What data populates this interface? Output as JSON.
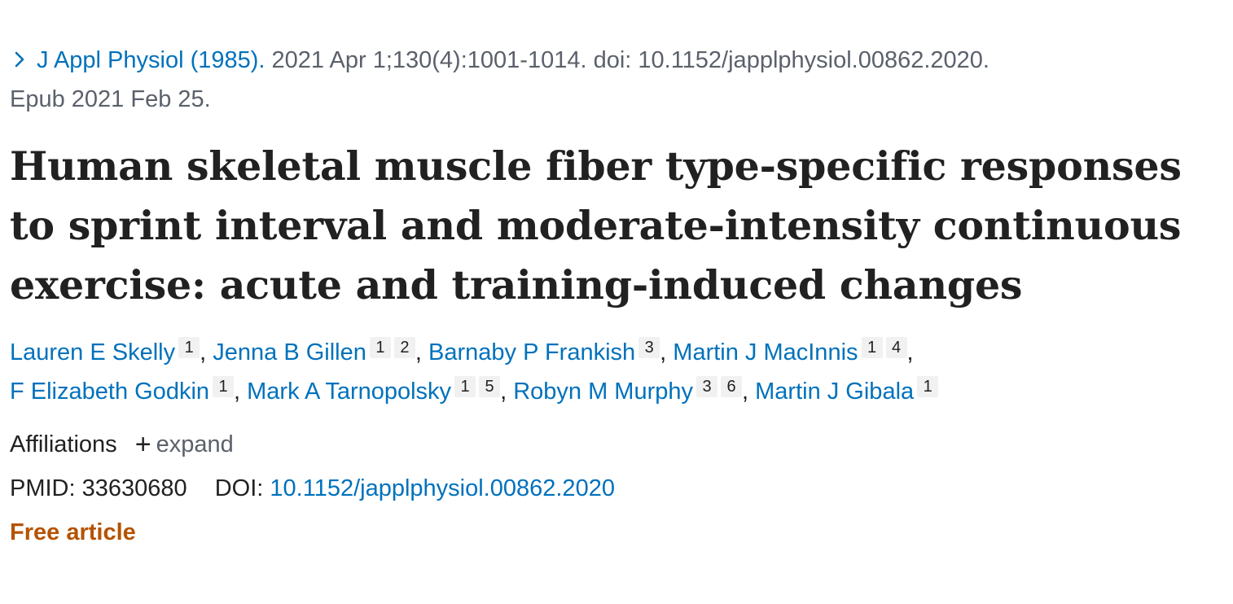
{
  "citation": {
    "journal": "J Appl Physiol (1985).",
    "details": "2021 Apr 1;130(4):1001-1014. doi: 10.1152/japplphysiol.00862.2020.",
    "epub": "Epub 2021 Feb 25."
  },
  "article": {
    "title_lines": [
      "Human skeletal muscle fiber type-specific responses",
      "to sprint interval and moderate-intensity continuous",
      "exercise: acute and training-induced changes"
    ]
  },
  "authors": [
    {
      "name": "Lauren E Skelly",
      "affs": [
        "1"
      ]
    },
    {
      "name": "Jenna B Gillen",
      "affs": [
        "1",
        "2"
      ]
    },
    {
      "name": "Barnaby P Frankish",
      "affs": [
        "3"
      ]
    },
    {
      "name": "Martin J MacInnis",
      "affs": [
        "1",
        "4"
      ]
    },
    {
      "name": "F Elizabeth Godkin",
      "affs": [
        "1"
      ]
    },
    {
      "name": "Mark A Tarnopolsky",
      "affs": [
        "1",
        "5"
      ]
    },
    {
      "name": "Robyn M Murphy",
      "affs": [
        "3",
        "6"
      ]
    },
    {
      "name": "Martin J Gibala",
      "affs": [
        "1"
      ]
    }
  ],
  "affiliations": {
    "label": "Affiliations",
    "expand_label": "expand"
  },
  "identifiers": {
    "pmid_label": "PMID:",
    "pmid": "33630680",
    "doi_label": "DOI:",
    "doi": "10.1152/japplphysiol.00862.2020"
  },
  "free_article": "Free article",
  "colors": {
    "link": "#0071bc",
    "free_article": "#b55300",
    "muted": "#5b616b"
  },
  "icons": {
    "journal_chevron": "chevron-right-icon",
    "expand": "plus-icon"
  }
}
